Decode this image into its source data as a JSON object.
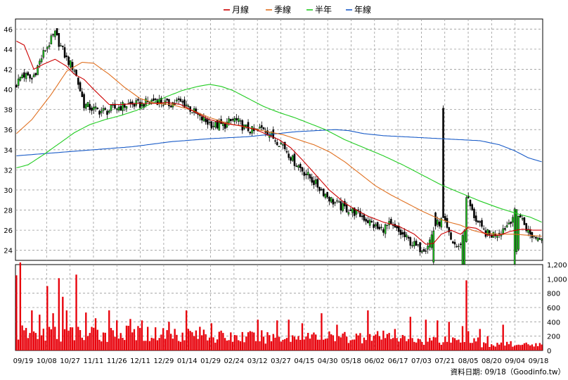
{
  "chart_data": {
    "type": "candlestick",
    "legend": [
      {
        "label": "月線",
        "color": "#cc0000"
      },
      {
        "label": "季線",
        "color": "#e07020"
      },
      {
        "label": "半年",
        "color": "#22cc22"
      },
      {
        "label": "年線",
        "color": "#1a5cc8"
      }
    ],
    "x_ticks": [
      "09/19",
      "10/08",
      "10/27",
      "11/11",
      "11/26",
      "12/11",
      "12/29",
      "01/14",
      "01/29",
      "02/24",
      "03/12",
      "03/27",
      "04/15",
      "04/30",
      "05/18",
      "06/02",
      "06/17",
      "07/03",
      "07/21",
      "08/05",
      "08/20",
      "09/04",
      "09/18"
    ],
    "price_axis": {
      "ticks": [
        24,
        26,
        28,
        30,
        32,
        34,
        36,
        38,
        40,
        42,
        44,
        46
      ],
      "ylim": [
        23,
        47
      ]
    },
    "volume_axis": {
      "ticks": [
        "0",
        "200",
        "400",
        "600",
        "800",
        "1,000",
        "1,200"
      ],
      "ylim": [
        0,
        1200
      ]
    },
    "source_text": "資料日期: 09/18（Goodinfo.tw）",
    "close_anchors": [
      [
        0,
        40.5
      ],
      [
        3,
        41.5
      ],
      [
        8,
        41
      ],
      [
        15,
        44
      ],
      [
        20,
        45.5
      ],
      [
        26,
        43
      ],
      [
        30,
        42
      ],
      [
        35,
        38.5
      ],
      [
        40,
        38
      ],
      [
        46,
        37.8
      ],
      [
        52,
        38.2
      ],
      [
        58,
        38.5
      ],
      [
        65,
        38.5
      ],
      [
        72,
        39
      ],
      [
        78,
        38.5
      ],
      [
        83,
        38.8
      ],
      [
        88,
        38.5
      ],
      [
        93,
        37.5
      ],
      [
        98,
        36.8
      ],
      [
        103,
        36.4
      ],
      [
        108,
        36.5
      ],
      [
        113,
        37
      ],
      [
        118,
        36.2
      ],
      [
        123,
        35.8
      ],
      [
        128,
        36.2
      ],
      [
        133,
        35.2
      ],
      [
        138,
        34.5
      ],
      [
        143,
        33
      ],
      [
        148,
        32
      ],
      [
        153,
        31
      ],
      [
        158,
        30
      ],
      [
        163,
        29
      ],
      [
        168,
        28.3
      ],
      [
        173,
        28
      ],
      [
        178,
        27.5
      ],
      [
        183,
        26.8
      ],
      [
        188,
        26
      ],
      [
        193,
        26.5
      ],
      [
        198,
        25.8
      ],
      [
        203,
        25
      ],
      [
        208,
        24.2
      ],
      [
        212,
        24.3
      ],
      [
        214,
        25
      ],
      [
        217,
        26.5
      ],
      [
        221,
        27
      ],
      [
        225,
        25
      ],
      [
        229,
        24.2
      ],
      [
        232,
        26
      ],
      [
        233,
        29.5
      ],
      [
        236,
        27.8
      ],
      [
        241,
        26
      ],
      [
        245,
        25.5
      ],
      [
        250,
        25.8
      ],
      [
        254,
        26.5
      ],
      [
        259,
        28
      ],
      [
        262,
        27
      ],
      [
        266,
        25.5
      ],
      [
        270,
        25.3
      ],
      [
        272,
        25.5
      ]
    ],
    "event_days": [
      [
        215,
        0.05
      ],
      [
        216,
        0.12
      ],
      [
        217,
        -0.05
      ],
      [
        221,
        -0.4
      ],
      [
        231,
        0.25
      ],
      [
        232,
        0.35
      ],
      [
        233,
        0.15
      ],
      [
        258,
        0.2
      ],
      [
        259,
        0.15
      ],
      [
        260,
        0.12
      ]
    ],
    "volume_spikes": [
      [
        0,
        1050
      ],
      [
        2,
        1230
      ],
      [
        8,
        560
      ],
      [
        12,
        500
      ],
      [
        16,
        900
      ],
      [
        19,
        520
      ],
      [
        22,
        1010
      ],
      [
        24,
        750
      ],
      [
        26,
        560
      ],
      [
        31,
        1060
      ],
      [
        36,
        530
      ],
      [
        41,
        450
      ],
      [
        48,
        560
      ],
      [
        52,
        420
      ],
      [
        59,
        440
      ],
      [
        65,
        420
      ],
      [
        79,
        400
      ],
      [
        88,
        560
      ],
      [
        101,
        380
      ],
      [
        125,
        430
      ],
      [
        135,
        420
      ],
      [
        141,
        430
      ],
      [
        148,
        380
      ],
      [
        158,
        520
      ],
      [
        166,
        360
      ],
      [
        182,
        560
      ],
      [
        196,
        300
      ],
      [
        204,
        470
      ],
      [
        212,
        430
      ],
      [
        218,
        420
      ],
      [
        224,
        400
      ],
      [
        231,
        340
      ],
      [
        233,
        980
      ],
      [
        234,
        270
      ],
      [
        240,
        300
      ],
      [
        244,
        200
      ],
      [
        252,
        360
      ],
      [
        256,
        130
      ],
      [
        262,
        80
      ],
      [
        266,
        70
      ],
      [
        270,
        60
      ]
    ],
    "ma_monthly": [
      [
        0,
        44.8
      ],
      [
        4,
        44.4
      ],
      [
        9,
        42
      ],
      [
        14,
        42.5
      ],
      [
        20,
        43
      ],
      [
        26,
        42.3
      ],
      [
        30,
        41.5
      ],
      [
        35,
        41
      ],
      [
        40,
        40
      ],
      [
        48,
        38.5
      ],
      [
        55,
        38.5
      ],
      [
        62,
        38.6
      ],
      [
        70,
        38.6
      ],
      [
        78,
        38.7
      ],
      [
        85,
        38.5
      ],
      [
        92,
        37.8
      ],
      [
        100,
        37
      ],
      [
        108,
        36.6
      ],
      [
        116,
        36.4
      ],
      [
        124,
        36
      ],
      [
        130,
        35.5
      ],
      [
        136,
        35
      ],
      [
        142,
        34.2
      ],
      [
        148,
        33
      ],
      [
        155,
        31.5
      ],
      [
        162,
        30
      ],
      [
        170,
        28.7
      ],
      [
        176,
        28
      ],
      [
        182,
        27.4
      ],
      [
        190,
        26.8
      ],
      [
        198,
        26.4
      ],
      [
        206,
        25.6
      ],
      [
        212,
        24.6
      ],
      [
        216,
        24.7
      ],
      [
        220,
        25.6
      ],
      [
        225,
        26
      ],
      [
        230,
        25.6
      ],
      [
        234,
        26.3
      ],
      [
        238,
        26.2
      ],
      [
        244,
        25.5
      ],
      [
        250,
        25.5
      ],
      [
        256,
        25.9
      ],
      [
        262,
        26.1
      ],
      [
        268,
        26
      ],
      [
        272,
        26
      ]
    ],
    "ma_quarterly": [
      [
        0,
        35.6
      ],
      [
        8,
        37
      ],
      [
        18,
        39.5
      ],
      [
        26,
        41.8
      ],
      [
        34,
        42.7
      ],
      [
        40,
        42.6
      ],
      [
        48,
        41.5
      ],
      [
        56,
        40.2
      ],
      [
        64,
        39.1
      ],
      [
        72,
        38.6
      ],
      [
        80,
        38.5
      ],
      [
        90,
        38
      ],
      [
        100,
        37.2
      ],
      [
        110,
        36.6
      ],
      [
        120,
        36.2
      ],
      [
        130,
        35.8
      ],
      [
        138,
        35.5
      ],
      [
        146,
        35
      ],
      [
        154,
        34.5
      ],
      [
        162,
        33.8
      ],
      [
        170,
        32.8
      ],
      [
        178,
        31.6
      ],
      [
        186,
        30.4
      ],
      [
        194,
        29.5
      ],
      [
        202,
        28.7
      ],
      [
        210,
        27.9
      ],
      [
        218,
        27.2
      ],
      [
        224,
        26.8
      ],
      [
        230,
        26.5
      ],
      [
        236,
        26
      ],
      [
        242,
        25.7
      ],
      [
        250,
        25.6
      ],
      [
        258,
        25.6
      ],
      [
        265,
        25.5
      ],
      [
        272,
        25.4
      ]
    ],
    "ma_halfyear": [
      [
        0,
        32.2
      ],
      [
        6,
        32.5
      ],
      [
        14,
        33.5
      ],
      [
        22,
        34.6
      ],
      [
        30,
        35.7
      ],
      [
        38,
        36.5
      ],
      [
        46,
        37
      ],
      [
        54,
        37.4
      ],
      [
        62,
        37.9
      ],
      [
        70,
        38.6
      ],
      [
        78,
        39.3
      ],
      [
        86,
        39.9
      ],
      [
        94,
        40.3
      ],
      [
        100,
        40.5
      ],
      [
        106,
        40.3
      ],
      [
        112,
        39.9
      ],
      [
        120,
        39.1
      ],
      [
        128,
        38.3
      ],
      [
        136,
        37.7
      ],
      [
        144,
        37.2
      ],
      [
        152,
        36.6
      ],
      [
        160,
        36
      ],
      [
        170,
        35
      ],
      [
        180,
        34.2
      ],
      [
        190,
        33.4
      ],
      [
        200,
        32.5
      ],
      [
        210,
        31.5
      ],
      [
        220,
        30.5
      ],
      [
        230,
        29.7
      ],
      [
        240,
        28.9
      ],
      [
        250,
        28.2
      ],
      [
        260,
        27.6
      ],
      [
        266,
        27.3
      ],
      [
        272,
        26.8
      ]
    ],
    "ma_yearly": [
      [
        0,
        33.4
      ],
      [
        20,
        33.7
      ],
      [
        40,
        34
      ],
      [
        60,
        34.3
      ],
      [
        80,
        34.8
      ],
      [
        100,
        35.1
      ],
      [
        120,
        35.3
      ],
      [
        135,
        35.6
      ],
      [
        145,
        35.8
      ],
      [
        155,
        35.9
      ],
      [
        165,
        36
      ],
      [
        172,
        35.9
      ],
      [
        180,
        35.6
      ],
      [
        190,
        35.4
      ],
      [
        200,
        35.3
      ],
      [
        210,
        35.2
      ],
      [
        220,
        35.1
      ],
      [
        230,
        35
      ],
      [
        240,
        34.9
      ],
      [
        250,
        34.5
      ],
      [
        258,
        33.9
      ],
      [
        265,
        33.2
      ],
      [
        272,
        32.8
      ]
    ]
  }
}
